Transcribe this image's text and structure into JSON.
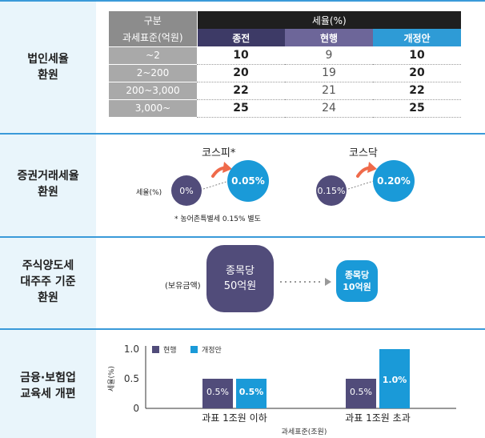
{
  "sections": {
    "corp_tax": {
      "label_lines": [
        "법인세율",
        "환원"
      ]
    },
    "securities": {
      "label_lines": [
        "증권거래세율",
        "환원"
      ]
    },
    "stock_transfer": {
      "label_lines": [
        "주식양도세",
        "대주주 기준",
        "환원"
      ]
    },
    "finance": {
      "label_lines": [
        "금융·보험업",
        "교육세 개편"
      ]
    }
  },
  "table": {
    "header_category": "구분",
    "header_rate": "세율(%)",
    "header_base": "과세표준(억원)",
    "col_prev": "종전",
    "col_current": "현행",
    "col_reform": "개정안",
    "rows": [
      {
        "base": "~2",
        "prev": "10",
        "current": "9",
        "reform": "10"
      },
      {
        "base": "2~200",
        "prev": "20",
        "current": "19",
        "reform": "20"
      },
      {
        "base": "200~3,000",
        "prev": "22",
        "current": "21",
        "reform": "22"
      },
      {
        "base": "3,000~",
        "prev": "25",
        "current": "24",
        "reform": "25"
      }
    ]
  },
  "securities": {
    "kospi_title": "코스피*",
    "kosdaq_title": "코스닥",
    "rate_label": "세율(%)",
    "kospi_from": "0%",
    "kospi_to": "0.05%",
    "kosdaq_from": "0.15%",
    "kosdaq_to": "0.20%",
    "footnote": "* 농어촌특별세 0.15% 별도"
  },
  "stock_transfer": {
    "holding_label": "(보유금액)",
    "from_line1": "종목당",
    "from_line2": "50억원",
    "to_line1": "종목당",
    "to_line2": "10억원"
  },
  "chart_data": {
    "type": "bar",
    "categories": [
      "과표 1조원 이하",
      "과표 1조원 초과"
    ],
    "series": [
      {
        "name": "현행",
        "values": [
          0.5,
          0.5
        ],
        "labels": [
          "0.5%",
          "0.5%"
        ],
        "color": "#514c7a"
      },
      {
        "name": "개정안",
        "values": [
          0.5,
          1.0
        ],
        "labels": [
          "0.5%",
          "1.0%"
        ],
        "color": "#1a9ad8"
      }
    ],
    "ylabel": "세율(%)",
    "xlabel": "과세표준(조원)",
    "yticks": [
      "0",
      "0.5",
      "1.0"
    ],
    "ylim": [
      0,
      1.0
    ],
    "legend": "top-left"
  }
}
